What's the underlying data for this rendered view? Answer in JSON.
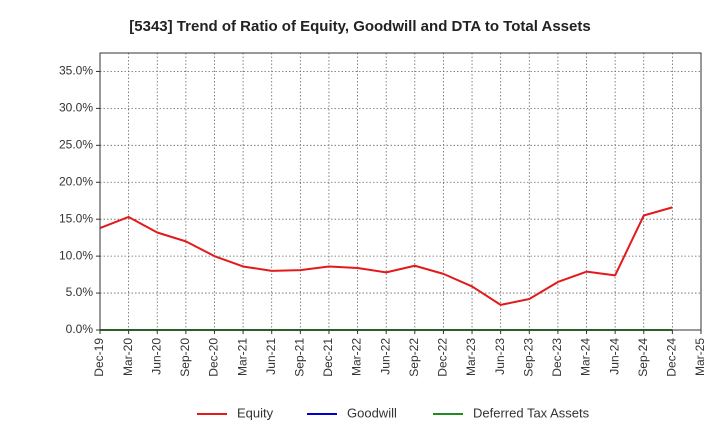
{
  "chart_data": {
    "type": "line",
    "title": "[5343]  Trend of Ratio of Equity, Goodwill and DTA to Total Assets",
    "xlabel": "",
    "ylabel": "",
    "ylim": [
      0,
      37.5
    ],
    "yticks": [
      0,
      5,
      10,
      15,
      20,
      25,
      30,
      35
    ],
    "ytick_labels": [
      "0.0%",
      "5.0%",
      "10.0%",
      "15.0%",
      "20.0%",
      "25.0%",
      "30.0%",
      "35.0%"
    ],
    "grid": true,
    "legend_position": "bottom",
    "categories": [
      "Dec-19",
      "Mar-20",
      "Jun-20",
      "Sep-20",
      "Dec-20",
      "Mar-21",
      "Jun-21",
      "Sep-21",
      "Dec-21",
      "Mar-22",
      "Jun-22",
      "Sep-22",
      "Dec-22",
      "Mar-23",
      "Jun-23",
      "Sep-23",
      "Dec-23",
      "Mar-24",
      "Jun-24",
      "Sep-24",
      "Dec-24",
      "Mar-25"
    ],
    "series": [
      {
        "name": "Equity",
        "color": "#e31a1c",
        "values": [
          13.8,
          15.3,
          13.2,
          12.0,
          10.0,
          8.6,
          8.0,
          8.1,
          8.6,
          8.4,
          7.8,
          8.7,
          7.6,
          5.9,
          3.4,
          4.2,
          6.5,
          7.9,
          7.4,
          15.5,
          16.6,
          null
        ]
      },
      {
        "name": "Goodwill",
        "color": "#0000cc",
        "values": [
          0,
          0,
          0,
          0,
          0,
          0,
          0,
          0,
          0,
          0,
          0,
          0,
          0,
          0,
          0,
          0,
          0,
          0,
          0,
          0,
          0,
          null
        ]
      },
      {
        "name": "Deferred Tax Assets",
        "color": "#228b22",
        "values": [
          0,
          0,
          0,
          0,
          0,
          0,
          0,
          0,
          0,
          0,
          0,
          0,
          0,
          0,
          0,
          0,
          0,
          0,
          0,
          0,
          0,
          null
        ]
      }
    ]
  }
}
